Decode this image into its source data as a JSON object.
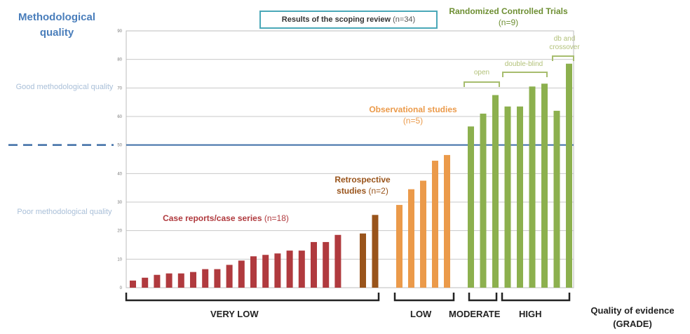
{
  "chart_data": {
    "type": "bar",
    "ylabel": "Methodological quality",
    "ylim": [
      0,
      90
    ],
    "yticks": [
      "0",
      "10",
      "20",
      "30",
      "40",
      "50",
      "60",
      "70",
      "80",
      "90"
    ],
    "threshold": 50,
    "zones": {
      "good": "Good methodological quality",
      "poor": "Poor methodological quality"
    },
    "title": "Results of the scoping review",
    "title_n": "(n=34)",
    "xlabel": "Quality of evidence (GRADE)",
    "series": [
      {
        "name": "Case reports/case series",
        "n": "(n=18)",
        "color": "#b03a3e",
        "values": [
          2.5,
          3.5,
          4.5,
          5,
          5,
          5.5,
          6.5,
          6.5,
          8,
          9.5,
          11,
          11.5,
          12,
          13,
          13,
          16,
          16,
          18.5
        ]
      },
      {
        "name": "Retrospective studies",
        "n": "(n=2)",
        "color": "#99541b",
        "values": [
          19,
          25.5
        ]
      },
      {
        "name": "Observational studies",
        "n": "(n=5)",
        "color": "#eb9a4a",
        "values": [
          29,
          34.5,
          37.5,
          44.5,
          46.5
        ]
      },
      {
        "name": "Randomized Controlled Trials",
        "n": "(n=9)",
        "color": "#8cb04e",
        "values": [
          56.5,
          61,
          67.5,
          63.5,
          63.5,
          70.5,
          71.5,
          62,
          78.5
        ]
      }
    ],
    "rct_subgroups": [
      "open",
      "double-blind",
      "db and crossover"
    ],
    "grade_categories": [
      "VERY LOW",
      "LOW",
      "MODERATE",
      "HIGH"
    ]
  }
}
